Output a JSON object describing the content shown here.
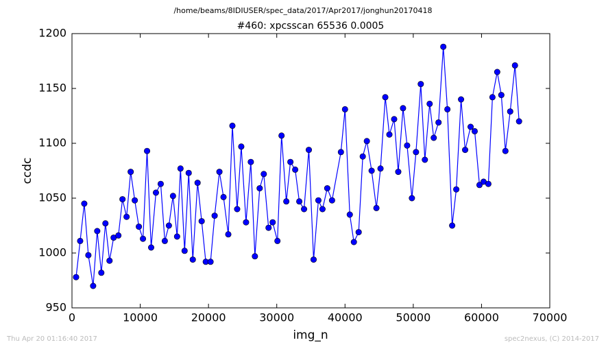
{
  "header": "/home/beams/8IDIUSER/spec_data/2017/Apr2017/jonghun20170418",
  "footer": {
    "left": "Thu Apr 20 01:16:40 2017",
    "right": "spec2nexus, (C) 2014-2017"
  },
  "chart_data": {
    "type": "line",
    "title": "#460: xpcsscan 65536 0.0005",
    "x_label": "img_n",
    "y_label": "ccdc",
    "color": "#0000ff",
    "marker_edge": "#000000",
    "x": [
      600,
      1200,
      1800,
      2400,
      3100,
      3700,
      4300,
      4900,
      5500,
      6100,
      6800,
      7400,
      8000,
      8600,
      9200,
      9800,
      10400,
      11000,
      11600,
      12300,
      13000,
      13600,
      14200,
      14800,
      15400,
      15900,
      16500,
      17100,
      17700,
      18400,
      19000,
      19600,
      20300,
      20900,
      21600,
      22200,
      22900,
      23500,
      24200,
      24800,
      25500,
      26200,
      26800,
      27500,
      28100,
      28800,
      29400,
      30100,
      30700,
      31400,
      32000,
      32700,
      33300,
      34000,
      34700,
      35400,
      36100,
      36700,
      37400,
      38100,
      39400,
      40000,
      40700,
      41300,
      42000,
      42600,
      43200,
      43900,
      44600,
      45200,
      45900,
      46500,
      47200,
      47800,
      48500,
      49100,
      49800,
      50400,
      51100,
      51700,
      52400,
      53000,
      53700,
      54400,
      55000,
      55700,
      56300,
      57000,
      57600,
      58400,
      59000,
      59700,
      60300,
      61000,
      61600,
      62300,
      62900,
      63500,
      64200,
      64900,
      65500
    ],
    "values": [
      978,
      1011,
      1045,
      998,
      970,
      1020,
      982,
      1027,
      993,
      1014,
      1016,
      1049,
      1033,
      1074,
      1048,
      1024,
      1013,
      1093,
      1005,
      1055,
      1063,
      1011,
      1025,
      1052,
      1015,
      1077,
      1002,
      1073,
      994,
      1064,
      1029,
      992,
      992,
      1034,
      1074,
      1051,
      1017,
      1116,
      1040,
      1097,
      1028,
      1083,
      997,
      1059,
      1072,
      1023,
      1028,
      1011,
      1107,
      1047,
      1083,
      1076,
      1047,
      1040,
      1094,
      994,
      1048,
      1040,
      1059,
      1048,
      1092,
      1131,
      1035,
      1010,
      1019,
      1088,
      1102,
      1075,
      1041,
      1077,
      1142,
      1108,
      1122,
      1074,
      1132,
      1098,
      1050,
      1092,
      1154,
      1085,
      1136,
      1105,
      1119,
      1188,
      1131,
      1025,
      1058,
      1140,
      1094,
      1115,
      1111,
      1062,
      1065,
      1063,
      1142,
      1165,
      1144,
      1093,
      1129,
      1171,
      1120
    ],
    "xlim": [
      0,
      70000
    ],
    "xticks": [
      0,
      10000,
      20000,
      30000,
      40000,
      50000,
      60000,
      70000
    ],
    "ylim": [
      950,
      1200
    ],
    "yticks": [
      950,
      1000,
      1050,
      1100,
      1150,
      1200
    ]
  }
}
